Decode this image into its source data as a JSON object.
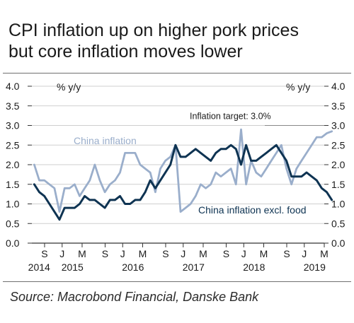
{
  "title_line1": "CPI inflation up on higher pork prices",
  "title_line2": "but core inflation moves lower",
  "source": "Source: Macrobond Financial, Danske Bank",
  "chart_data": {
    "type": "line",
    "ylabel_left": "% y/y",
    "ylabel_right": "% y/y",
    "ylim": [
      0,
      4
    ],
    "yticks": [
      "0.0",
      "0.5",
      "1.0",
      "1.5",
      "2.0",
      "2.5",
      "3.0",
      "3.5",
      "4.0"
    ],
    "ytick_values": [
      0,
      0.5,
      1,
      1.5,
      2,
      2.5,
      3,
      3.5,
      4
    ],
    "xlim": [
      2014.5,
      2019.33
    ],
    "month_ticks": [
      {
        "label": "S",
        "x": 2014.71
      },
      {
        "label": "J",
        "x": 2015.0
      },
      {
        "label": "M",
        "x": 2015.33
      },
      {
        "label": "S",
        "x": 2015.71
      },
      {
        "label": "J",
        "x": 2016.0
      },
      {
        "label": "M",
        "x": 2016.33
      },
      {
        "label": "S",
        "x": 2016.71
      },
      {
        "label": "J",
        "x": 2017.0
      },
      {
        "label": "M",
        "x": 2017.33
      },
      {
        "label": "S",
        "x": 2017.71
      },
      {
        "label": "J",
        "x": 2018.0
      },
      {
        "label": "M",
        "x": 2018.33
      },
      {
        "label": "S",
        "x": 2018.71
      },
      {
        "label": "J",
        "x": 2019.0
      },
      {
        "label": "M",
        "x": 2019.33
      }
    ],
    "year_labels": [
      {
        "label": "2014",
        "x": 2014.62
      },
      {
        "label": "2015",
        "x": 2015.17
      },
      {
        "label": "2016",
        "x": 2016.17
      },
      {
        "label": "2017",
        "x": 2017.17
      },
      {
        "label": "2018",
        "x": 2018.17
      },
      {
        "label": "2019",
        "x": 2019.17
      }
    ],
    "target": {
      "label": "Inflation target: 3.0%",
      "value": 3.0
    },
    "series": [
      {
        "name": "China inflation",
        "color": "#9aaecb",
        "start": 2014.54,
        "step": 0.0833,
        "values": [
          2.0,
          1.6,
          1.6,
          1.5,
          1.4,
          0.8,
          1.4,
          1.4,
          1.5,
          1.2,
          1.4,
          1.6,
          2.0,
          1.6,
          1.3,
          1.5,
          1.6,
          1.8,
          2.3,
          2.3,
          2.3,
          2.0,
          1.9,
          1.8,
          1.3,
          1.9,
          2.1,
          2.2,
          2.5,
          0.8,
          0.9,
          1.0,
          1.2,
          1.5,
          1.4,
          1.5,
          1.8,
          1.7,
          1.8,
          1.9,
          1.5,
          2.9,
          1.5,
          2.1,
          1.8,
          1.7,
          1.9,
          2.1,
          2.3,
          2.5,
          1.9,
          1.5,
          1.9,
          2.1,
          2.3,
          2.5,
          2.7,
          2.7,
          2.8,
          2.85
        ]
      },
      {
        "name": "China inflation excl. food",
        "color": "#0e3352",
        "start": 2014.54,
        "step": 0.0833,
        "values": [
          1.5,
          1.3,
          1.2,
          1.0,
          0.8,
          0.6,
          0.9,
          0.9,
          0.9,
          1.0,
          1.2,
          1.1,
          1.1,
          1.0,
          0.9,
          1.1,
          1.1,
          1.2,
          1.0,
          1.0,
          1.1,
          1.1,
          1.3,
          1.6,
          1.4,
          1.6,
          1.8,
          2.0,
          2.5,
          2.2,
          2.2,
          2.3,
          2.4,
          2.3,
          2.2,
          2.1,
          2.3,
          2.4,
          2.4,
          2.5,
          2.4,
          2.0,
          2.5,
          2.1,
          2.1,
          2.2,
          2.3,
          2.4,
          2.5,
          2.3,
          2.1,
          1.7,
          1.7,
          1.7,
          1.8,
          1.7,
          1.6,
          1.4,
          1.3,
          1.1
        ]
      }
    ],
    "series_labels": [
      {
        "text": "China inflation",
        "series": 0
      },
      {
        "text": "China inflation excl. food",
        "series": 1
      }
    ]
  }
}
